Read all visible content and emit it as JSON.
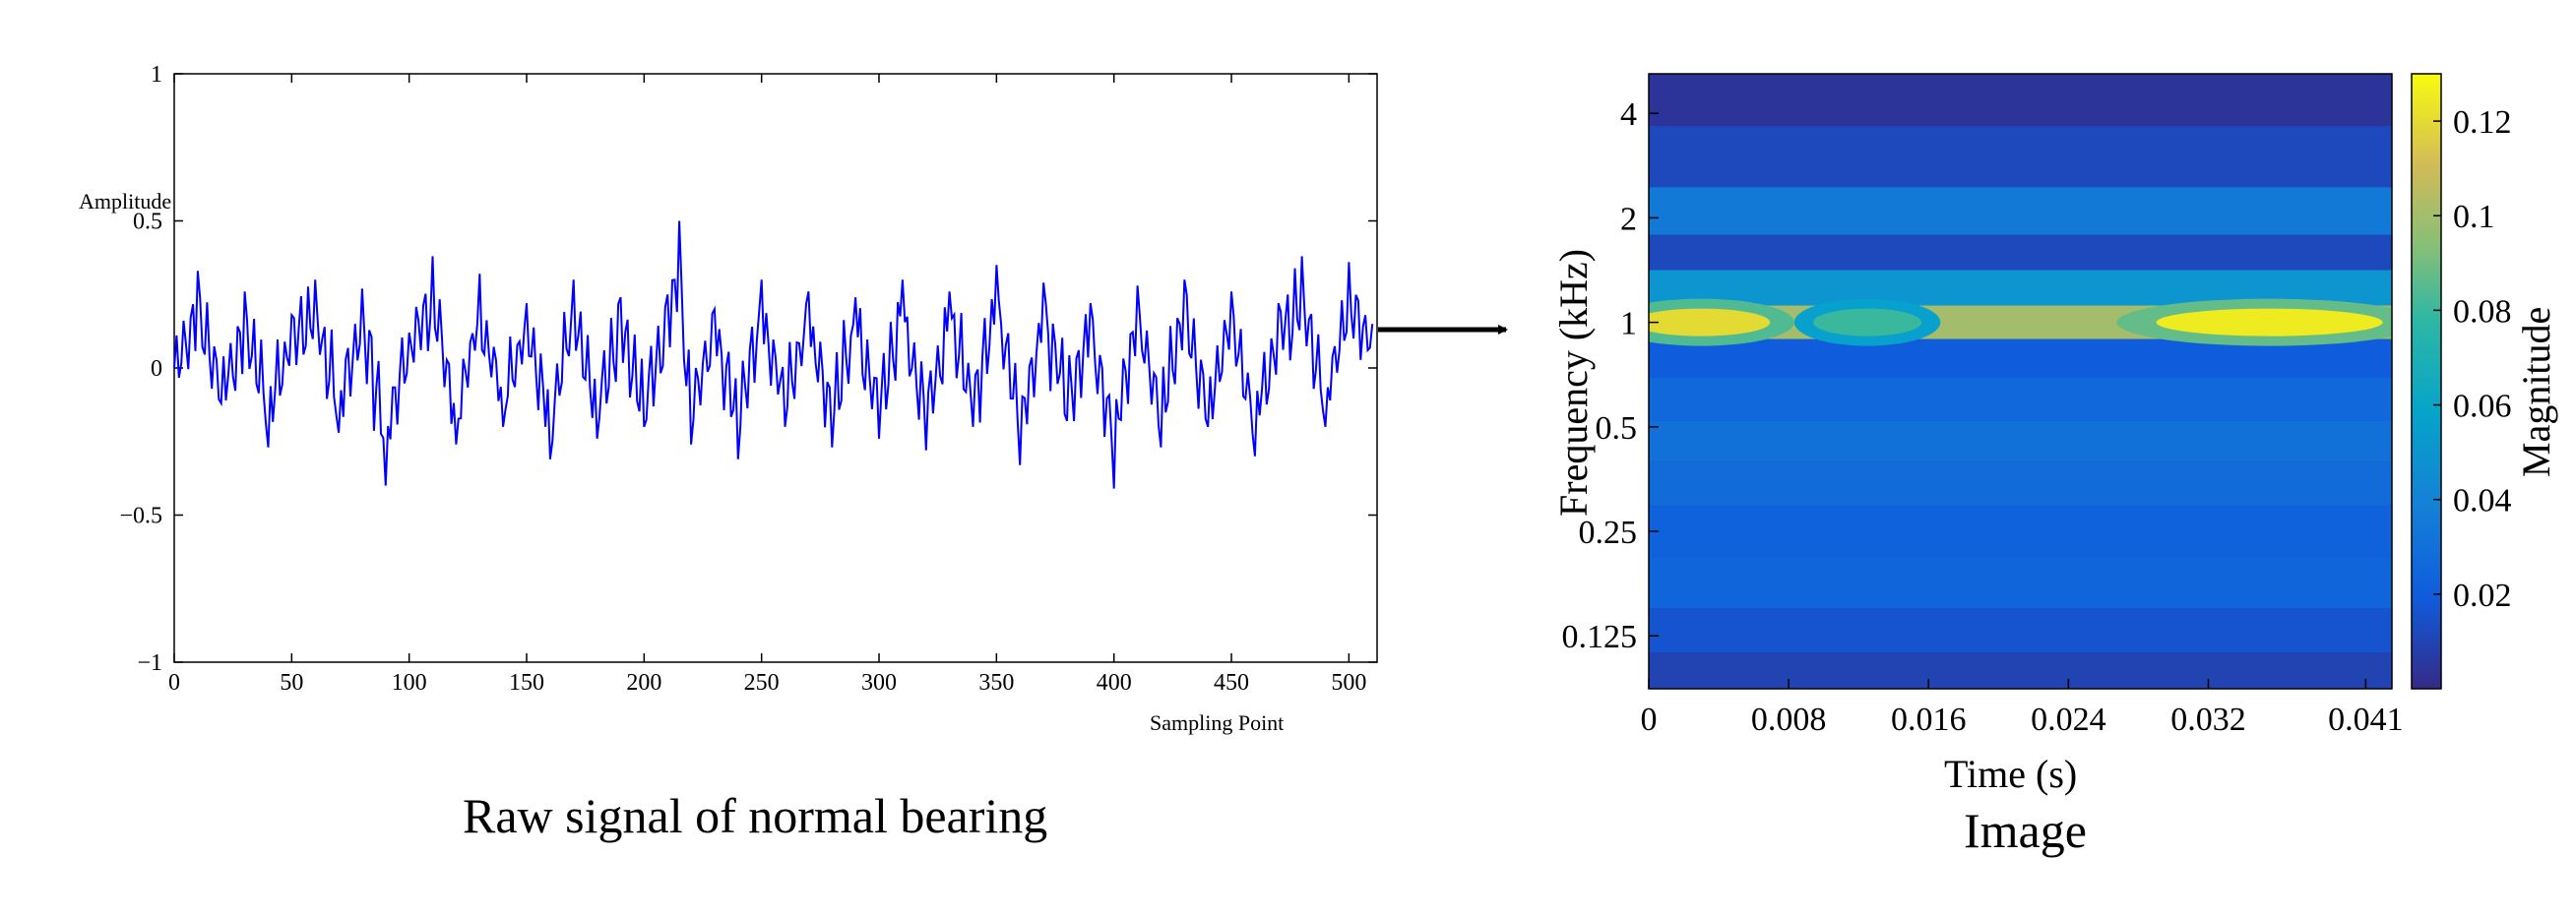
{
  "chart_data": [
    {
      "type": "line",
      "title": "",
      "xlabel": "Sampling Point",
      "ylabel": "Amplitude",
      "xlim": [
        0,
        512
      ],
      "ylim": [
        -1,
        1
      ],
      "xticks": [
        0,
        50,
        100,
        150,
        200,
        250,
        300,
        350,
        400,
        450,
        500
      ],
      "xtick_labels": [
        "0",
        "50",
        "100",
        "150",
        "200",
        "250",
        "300",
        "350",
        "400",
        "450",
        "500"
      ],
      "yticks": [
        1,
        0.5,
        0,
        -0.5,
        -1
      ],
      "ytick_labels": [
        "1",
        "0.5",
        "0",
        "−0.5",
        "−1"
      ],
      "series": [
        {
          "name": "raw signal",
          "color": "#0000ff",
          "x": [
            0,
            10,
            20,
            30,
            40,
            50,
            60,
            70,
            80,
            90,
            100,
            110,
            120,
            130,
            140,
            150,
            160,
            170,
            180,
            190,
            200,
            210,
            215,
            220,
            230,
            240,
            250,
            260,
            270,
            280,
            290,
            300,
            310,
            320,
            330,
            340,
            350,
            360,
            370,
            380,
            390,
            400,
            410,
            420,
            430,
            440,
            450,
            460,
            470,
            480,
            490,
            500,
            510
          ],
          "values": [
            0.0,
            0.33,
            -0.12,
            0.26,
            -0.27,
            0.18,
            0.3,
            -0.22,
            0.27,
            -0.4,
            0.12,
            0.38,
            -0.26,
            0.32,
            -0.2,
            0.22,
            -0.31,
            0.3,
            -0.24,
            0.24,
            -0.2,
            0.25,
            0.5,
            -0.26,
            0.2,
            -0.31,
            0.3,
            -0.2,
            0.26,
            -0.27,
            0.24,
            -0.24,
            0.3,
            -0.28,
            0.26,
            -0.2,
            0.35,
            -0.33,
            0.29,
            -0.18,
            0.22,
            -0.41,
            0.28,
            -0.27,
            0.3,
            -0.2,
            0.26,
            -0.3,
            0.22,
            0.38,
            -0.2,
            0.36,
            0.15
          ]
        }
      ]
    },
    {
      "type": "heatmap",
      "title": "",
      "xlabel": "Time (s)",
      "ylabel": "Frequency (kHz)",
      "xlim": [
        0,
        0.0425
      ],
      "x_ticks": [
        0,
        0.008,
        0.016,
        0.024,
        0.032,
        0.041
      ],
      "x_tick_labels": [
        "0",
        "0.008",
        "0.016",
        "0.024",
        "0.032",
        "0.041"
      ],
      "y_scale": "log2",
      "y_ticks": [
        4,
        2,
        1,
        0.5,
        0.25,
        0.125
      ],
      "y_tick_labels": [
        "4",
        "2",
        "1",
        "0.5",
        "0.25",
        "0.125"
      ],
      "colorbar": {
        "label": "Magnitude",
        "range": [
          0,
          0.13
        ],
        "ticks": [
          0.12,
          0.1,
          0.08,
          0.06,
          0.04,
          0.02
        ],
        "tick_labels": [
          "0.12",
          "0.1",
          "0.08",
          "0.06",
          "0.04",
          "0.02"
        ],
        "colormap": "parula"
      },
      "bands": [
        {
          "freq_khz": 4.5,
          "magnitude": 0.004
        },
        {
          "freq_khz": 3.0,
          "magnitude": 0.012
        },
        {
          "freq_khz": 2.0,
          "magnitude": 0.035
        },
        {
          "freq_khz": 1.6,
          "magnitude": 0.012
        },
        {
          "freq_khz": 1.25,
          "magnitude": 0.05
        },
        {
          "freq_khz": 1.0,
          "magnitude": 0.1
        },
        {
          "freq_khz": 0.8,
          "magnitude": 0.02
        },
        {
          "freq_khz": 0.6,
          "magnitude": 0.026
        },
        {
          "freq_khz": 0.45,
          "magnitude": 0.03
        },
        {
          "freq_khz": 0.35,
          "magnitude": 0.028
        },
        {
          "freq_khz": 0.25,
          "magnitude": 0.022
        },
        {
          "freq_khz": 0.18,
          "magnitude": 0.024
        },
        {
          "freq_khz": 0.125,
          "magnitude": 0.016
        },
        {
          "freq_khz": 0.1,
          "magnitude": 0.01
        }
      ],
      "hot_spots": [
        {
          "t": 0.003,
          "freq_khz": 1.0,
          "magnitude": 0.12
        },
        {
          "t": 0.0125,
          "freq_khz": 1.0,
          "magnitude": 0.08
        },
        {
          "t": 0.0355,
          "freq_khz": 1.0,
          "magnitude": 0.125
        }
      ]
    }
  ],
  "captions": {
    "left": "Raw signal of normal bearing",
    "right": "Image"
  }
}
